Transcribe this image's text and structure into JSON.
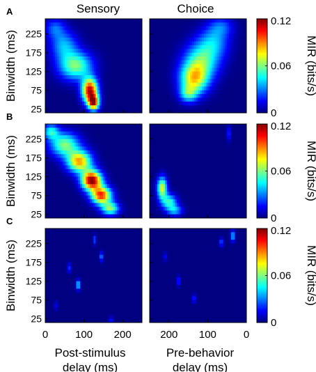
{
  "chart_data": {
    "type": "heatmap",
    "column_titles": [
      "Sensory",
      "Choice"
    ],
    "row_labels": [
      "A",
      "B",
      "C"
    ],
    "ylabel": "Binwidth (ms)",
    "yticks": [
      25,
      75,
      125,
      175,
      225
    ],
    "ylim": [
      15,
      265
    ],
    "left_x": {
      "label_line1": "Post-stimulus",
      "label_line2": "delay (ms)",
      "ticks": [
        0,
        100,
        200
      ],
      "xlim": [
        0,
        250
      ]
    },
    "right_x": {
      "label_line1": "Pre-behavior",
      "label_line2": "delay (ms)",
      "ticks": [
        200,
        100,
        0
      ],
      "xlim": [
        250,
        0
      ]
    },
    "colorbar": {
      "label": "MIR (bits/s)",
      "ticks": [
        "0",
        "0.06",
        "0.12"
      ],
      "min": 0,
      "max": 0.12,
      "colormap": "jet"
    },
    "background_value": 0.0,
    "panels": [
      {
        "row": "A",
        "column": "Sensory",
        "blobs": [
          {
            "x": 115,
            "y": 75,
            "sx": 14,
            "sy": 22,
            "peak": 0.112
          },
          {
            "x": 125,
            "y": 42,
            "sx": 10,
            "sy": 14,
            "peak": 0.1
          },
          {
            "x": 78,
            "y": 140,
            "sx": 30,
            "sy": 26,
            "peak": 0.06
          },
          {
            "x": 48,
            "y": 195,
            "sx": 24,
            "sy": 26,
            "peak": 0.035
          },
          {
            "x": 25,
            "y": 240,
            "sx": 18,
            "sy": 18,
            "peak": 0.025
          }
        ]
      },
      {
        "row": "A",
        "column": "Choice",
        "blobs": [
          {
            "x": 115,
            "y": 105,
            "sx": 26,
            "sy": 28,
            "peak": 0.072
          },
          {
            "x": 135,
            "y": 155,
            "sx": 32,
            "sy": 32,
            "peak": 0.05
          },
          {
            "x": 165,
            "y": 205,
            "sx": 28,
            "sy": 28,
            "peak": 0.032
          },
          {
            "x": 185,
            "y": 245,
            "sx": 22,
            "sy": 18,
            "peak": 0.022
          },
          {
            "x": 100,
            "y": 65,
            "sx": 16,
            "sy": 16,
            "peak": 0.04
          }
        ]
      },
      {
        "row": "B",
        "column": "Sensory",
        "blobs": [
          {
            "x": 120,
            "y": 115,
            "sx": 18,
            "sy": 18,
            "peak": 0.12
          },
          {
            "x": 145,
            "y": 75,
            "sx": 18,
            "sy": 16,
            "peak": 0.1
          },
          {
            "x": 88,
            "y": 165,
            "sx": 22,
            "sy": 20,
            "peak": 0.085
          },
          {
            "x": 50,
            "y": 210,
            "sx": 26,
            "sy": 22,
            "peak": 0.06
          },
          {
            "x": 168,
            "y": 40,
            "sx": 16,
            "sy": 12,
            "peak": 0.06
          },
          {
            "x": 15,
            "y": 245,
            "sx": 14,
            "sy": 14,
            "peak": 0.045
          }
        ]
      },
      {
        "row": "B",
        "column": "Choice",
        "blobs": [
          {
            "x": 32,
            "y": 95,
            "sx": 9,
            "sy": 20,
            "peak": 0.072
          },
          {
            "x": 50,
            "y": 58,
            "sx": 14,
            "sy": 14,
            "peak": 0.05
          },
          {
            "x": 65,
            "y": 35,
            "sx": 14,
            "sy": 10,
            "peak": 0.035
          },
          {
            "x": 205,
            "y": 240,
            "sx": 4,
            "sy": 14,
            "peak": 0.02
          }
        ]
      },
      {
        "row": "C",
        "column": "Sensory",
        "blobs": [
          {
            "x": 85,
            "y": 115,
            "sx": 4,
            "sy": 9,
            "peak": 0.045
          },
          {
            "x": 145,
            "y": 190,
            "sx": 3,
            "sy": 9,
            "peak": 0.035
          },
          {
            "x": 128,
            "y": 235,
            "sx": 3,
            "sy": 9,
            "peak": 0.025
          },
          {
            "x": 62,
            "y": 160,
            "sx": 4,
            "sy": 9,
            "peak": 0.02
          },
          {
            "x": 170,
            "y": 22,
            "sx": 4,
            "sy": 6,
            "peak": 0.02
          },
          {
            "x": 28,
            "y": 60,
            "sx": 4,
            "sy": 8,
            "peak": 0.014
          }
        ]
      },
      {
        "row": "C",
        "column": "Choice",
        "blobs": [
          {
            "x": 215,
            "y": 245,
            "sx": 4,
            "sy": 10,
            "peak": 0.04
          },
          {
            "x": 185,
            "y": 228,
            "sx": 4,
            "sy": 8,
            "peak": 0.025
          },
          {
            "x": 75,
            "y": 125,
            "sx": 3,
            "sy": 9,
            "peak": 0.025
          },
          {
            "x": 115,
            "y": 78,
            "sx": 4,
            "sy": 8,
            "peak": 0.02
          },
          {
            "x": 40,
            "y": 190,
            "sx": 4,
            "sy": 8,
            "peak": 0.015
          }
        ]
      }
    ]
  }
}
